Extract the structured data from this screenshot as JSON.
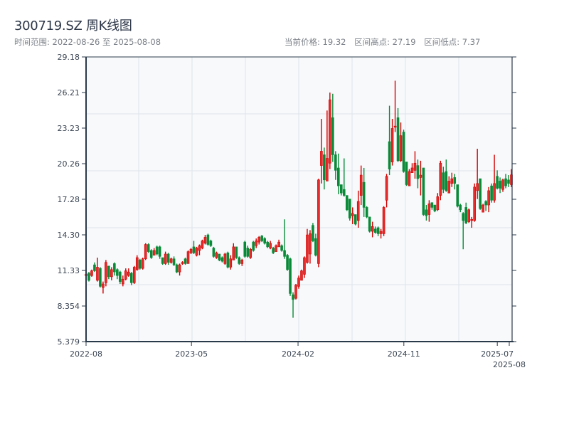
{
  "header": {
    "title": "300719.SZ 周K线图",
    "range_label": "时间范围: 2022-08-26 至 2025-08-08",
    "current_price": "当前价格: 19.32",
    "period_high": "区间高点: 27.19",
    "period_low": "区间低点: 7.37"
  },
  "chart_data": {
    "type": "candlestick",
    "title": "300719.SZ 周K线图",
    "frequency": "weekly",
    "start_date": "2022-08-26",
    "end_date": "2025-08-08",
    "ylim": [
      5.379,
      29.18
    ],
    "y_ticks": [
      "5.379",
      "8.354",
      "11.33",
      "14.30",
      "17.28",
      "20.26",
      "23.23",
      "26.21",
      "29.18"
    ],
    "x_ticks": [
      {
        "label": "2022-08",
        "date": "2022-08-01"
      },
      {
        "label": "2023-05",
        "date": "2023-05-01"
      },
      {
        "label": "2024-02",
        "date": "2024-02-01"
      },
      {
        "label": "2024-11",
        "date": "2024-11-01"
      },
      {
        "label": "2025-07",
        "date": "2025-07-01"
      },
      {
        "label": "2025-08",
        "date": "2025-08-01"
      }
    ],
    "grid": true,
    "colors": {
      "up": "#d40000",
      "down": "#0a8a38",
      "background": "#f7f9fb",
      "axis": "#2b3a4a",
      "grid": "#dfe3e8"
    },
    "ohlc_fields": [
      "open",
      "high",
      "low",
      "close"
    ],
    "candles": [
      [
        10.9,
        11.1,
        10.8,
        11.0
      ],
      [
        11.1,
        11.2,
        10.4,
        10.5
      ],
      [
        10.9,
        11.4,
        10.8,
        11.3
      ],
      [
        11.8,
        12.0,
        11.2,
        11.3
      ],
      [
        10.5,
        12.4,
        10.4,
        11.6
      ],
      [
        11.5,
        11.6,
        9.9,
        10.0
      ],
      [
        9.9,
        10.4,
        9.4,
        10.2
      ],
      [
        10.3,
        12.2,
        10.0,
        12.0
      ],
      [
        11.7,
        11.7,
        10.6,
        10.8
      ],
      [
        10.8,
        11.6,
        10.5,
        11.4
      ],
      [
        11.9,
        12.0,
        10.9,
        11.2
      ],
      [
        11.4,
        11.5,
        10.6,
        10.9
      ],
      [
        11.2,
        11.3,
        10.2,
        10.4
      ],
      [
        10.2,
        10.9,
        10.0,
        10.6
      ],
      [
        10.6,
        11.5,
        10.5,
        11.3
      ],
      [
        10.9,
        11.5,
        10.8,
        11.2
      ],
      [
        11.1,
        11.2,
        10.1,
        10.3
      ],
      [
        10.3,
        11.7,
        10.2,
        11.6
      ],
      [
        11.4,
        12.6,
        11.3,
        12.4
      ],
      [
        12.2,
        12.3,
        11.4,
        11.5
      ],
      [
        11.5,
        12.4,
        11.4,
        12.3
      ],
      [
        12.3,
        13.6,
        12.2,
        13.5
      ],
      [
        13.5,
        13.6,
        12.8,
        12.9
      ],
      [
        13.0,
        13.1,
        12.3,
        12.4
      ],
      [
        12.6,
        13.2,
        12.6,
        13.0
      ],
      [
        13.3,
        13.4,
        12.6,
        12.7
      ],
      [
        13.3,
        13.4,
        12.3,
        12.5
      ],
      [
        12.4,
        12.4,
        11.8,
        11.9
      ],
      [
        11.9,
        12.9,
        11.8,
        12.7
      ],
      [
        12.7,
        12.8,
        11.8,
        12.0
      ],
      [
        12.0,
        12.4,
        11.9,
        12.3
      ],
      [
        12.3,
        12.5,
        11.7,
        11.8
      ],
      [
        11.8,
        11.9,
        11.1,
        11.2
      ],
      [
        11.2,
        11.9,
        10.9,
        11.8
      ],
      [
        11.9,
        12.1,
        11.8,
        12.0
      ],
      [
        12.3,
        12.4,
        11.8,
        11.9
      ],
      [
        11.9,
        13.0,
        11.9,
        12.9
      ],
      [
        12.8,
        13.2,
        12.7,
        13.1
      ],
      [
        13.3,
        13.8,
        12.7,
        12.8
      ],
      [
        12.6,
        13.3,
        12.5,
        13.2
      ],
      [
        13.0,
        13.5,
        12.6,
        13.4
      ],
      [
        13.2,
        13.9,
        13.1,
        13.8
      ],
      [
        13.6,
        14.3,
        13.5,
        14.1
      ],
      [
        14.3,
        14.4,
        13.4,
        13.5
      ],
      [
        13.8,
        13.9,
        13.3,
        13.4
      ],
      [
        13.2,
        13.3,
        12.4,
        12.5
      ],
      [
        12.4,
        12.9,
        12.3,
        12.8
      ],
      [
        12.7,
        12.7,
        12.1,
        12.2
      ],
      [
        12.4,
        12.5,
        12.0,
        12.1
      ],
      [
        11.9,
        12.8,
        11.8,
        12.7
      ],
      [
        12.8,
        12.9,
        11.5,
        11.6
      ],
      [
        11.6,
        12.6,
        11.4,
        12.3
      ],
      [
        12.2,
        13.6,
        12.2,
        13.3
      ],
      [
        13.3,
        13.3,
        12.3,
        12.4
      ],
      [
        12.4,
        12.5,
        11.8,
        11.9
      ],
      [
        11.9,
        12.3,
        11.7,
        12.2
      ],
      [
        13.7,
        13.8,
        12.4,
        12.5
      ],
      [
        13.2,
        13.4,
        12.4,
        12.5
      ],
      [
        12.4,
        13.2,
        12.3,
        13.1
      ],
      [
        13.7,
        13.8,
        12.9,
        13.0
      ],
      [
        13.4,
        14.0,
        13.2,
        13.8
      ],
      [
        13.7,
        14.2,
        13.5,
        14.1
      ],
      [
        14.2,
        14.3,
        13.7,
        13.8
      ],
      [
        14.0,
        14.1,
        13.5,
        13.6
      ],
      [
        13.7,
        13.8,
        13.2,
        13.3
      ],
      [
        13.2,
        13.8,
        13.1,
        13.6
      ],
      [
        13.2,
        13.3,
        12.7,
        12.8
      ],
      [
        12.9,
        13.5,
        12.9,
        13.4
      ],
      [
        13.3,
        13.9,
        13.3,
        13.7
      ],
      [
        13.4,
        13.5,
        12.9,
        13.0
      ],
      [
        13.0,
        15.6,
        12.3,
        12.5
      ],
      [
        12.6,
        12.7,
        11.3,
        11.4
      ],
      [
        12.3,
        12.4,
        9.2,
        9.4
      ],
      [
        9.3,
        9.5,
        7.37,
        8.9
      ],
      [
        9.0,
        10.2,
        8.9,
        10.1
      ],
      [
        10.0,
        10.9,
        9.8,
        10.7
      ],
      [
        10.5,
        11.4,
        10.5,
        11.3
      ],
      [
        11.0,
        12.5,
        10.7,
        12.4
      ],
      [
        12.0,
        14.8,
        11.9,
        14.3
      ],
      [
        12.7,
        14.7,
        11.9,
        14.4
      ],
      [
        15.1,
        15.3,
        13.7,
        13.8
      ],
      [
        14.0,
        14.4,
        12.5,
        12.6
      ],
      [
        11.9,
        19.0,
        11.6,
        18.9
      ],
      [
        20.1,
        24.0,
        18.6,
        21.3
      ],
      [
        21.0,
        21.6,
        18.1,
        18.9
      ],
      [
        18.8,
        24.7,
        18.8,
        20.7
      ],
      [
        20.3,
        26.2,
        19.8,
        25.6
      ],
      [
        24.1,
        26.1,
        20.4,
        21.0
      ],
      [
        21.0,
        21.3,
        18.9,
        19.7
      ],
      [
        19.9,
        21.1,
        17.7,
        18.4
      ],
      [
        18.5,
        18.5,
        17.6,
        17.8
      ],
      [
        18.1,
        20.7,
        17.5,
        17.6
      ],
      [
        17.6,
        17.6,
        16.3,
        16.4
      ],
      [
        17.3,
        17.3,
        15.5,
        15.7
      ],
      [
        15.9,
        16.6,
        15.2,
        16.1
      ],
      [
        16.0,
        16.0,
        15.1,
        15.2
      ],
      [
        15.5,
        18.0,
        14.9,
        17.1
      ],
      [
        17.6,
        20.1,
        16.8,
        19.3
      ],
      [
        18.7,
        19.9,
        15.8,
        16.6
      ],
      [
        16.6,
        16.7,
        15.7,
        15.8
      ],
      [
        15.8,
        15.8,
        14.5,
        14.6
      ],
      [
        14.6,
        15.4,
        14.1,
        15.0
      ],
      [
        14.8,
        15.0,
        14.4,
        14.5
      ],
      [
        14.9,
        15.0,
        14.2,
        14.4
      ],
      [
        14.4,
        14.8,
        14.0,
        14.6
      ],
      [
        14.4,
        16.7,
        14.2,
        16.6
      ],
      [
        17.2,
        19.4,
        16.6,
        19.2
      ],
      [
        22.1,
        25.1,
        19.3,
        19.8
      ],
      [
        20.4,
        24.0,
        20.1,
        23.2
      ],
      [
        23.3,
        27.19,
        22.9,
        23.4
      ],
      [
        24.1,
        24.9,
        20.4,
        20.5
      ],
      [
        20.5,
        23.7,
        20.4,
        22.6
      ],
      [
        22.9,
        23.1,
        19.5,
        19.6
      ],
      [
        20.4,
        20.4,
        18.4,
        18.5
      ],
      [
        18.4,
        19.8,
        18.4,
        19.6
      ],
      [
        19.5,
        20.3,
        19.5,
        19.9
      ],
      [
        19.7,
        21.3,
        19.0,
        20.3
      ],
      [
        20.1,
        20.6,
        18.2,
        19.0
      ],
      [
        19.1,
        20.5,
        17.6,
        19.3
      ],
      [
        19.9,
        19.9,
        15.9,
        16.0
      ],
      [
        16.4,
        16.8,
        15.5,
        15.9
      ],
      [
        16.0,
        17.2,
        15.4,
        16.9
      ],
      [
        17.0,
        17.0,
        16.4,
        16.6
      ],
      [
        16.8,
        16.8,
        16.2,
        16.3
      ],
      [
        16.4,
        17.8,
        16.3,
        17.5
      ],
      [
        17.6,
        20.5,
        17.2,
        20.3
      ],
      [
        19.5,
        20.0,
        17.8,
        18.1
      ],
      [
        19.6,
        20.6,
        17.9,
        18.0
      ],
      [
        17.8,
        19.2,
        17.8,
        18.8
      ],
      [
        18.6,
        19.5,
        18.3,
        19.0
      ],
      [
        19.1,
        19.4,
        18.1,
        18.6
      ],
      [
        18.5,
        18.5,
        16.6,
        16.7
      ],
      [
        16.8,
        16.9,
        16.2,
        16.4
      ],
      [
        16.1,
        16.2,
        13.1,
        15.5
      ],
      [
        16.6,
        17.0,
        15.2,
        15.3
      ],
      [
        15.4,
        16.5,
        15.3,
        16.4
      ],
      [
        15.5,
        15.8,
        14.9,
        15.6
      ],
      [
        15.5,
        18.6,
        15.4,
        18.3
      ],
      [
        18.0,
        21.5,
        17.3,
        18.6
      ],
      [
        19.0,
        19.0,
        16.4,
        16.5
      ],
      [
        16.2,
        16.9,
        16.2,
        16.8
      ],
      [
        17.1,
        17.2,
        16.3,
        16.8
      ],
      [
        16.8,
        18.3,
        16.2,
        18.0
      ],
      [
        18.4,
        18.6,
        17.0,
        17.2
      ],
      [
        17.2,
        21.0,
        17.0,
        18.6
      ],
      [
        19.2,
        19.7,
        18.1,
        18.2
      ],
      [
        18.8,
        19.1,
        17.8,
        18.2
      ],
      [
        18.1,
        19.0,
        17.9,
        18.9
      ],
      [
        19.0,
        19.4,
        18.2,
        18.4
      ],
      [
        18.9,
        19.3,
        18.3,
        18.6
      ],
      [
        18.5,
        19.8,
        18.3,
        19.32
      ]
    ]
  }
}
